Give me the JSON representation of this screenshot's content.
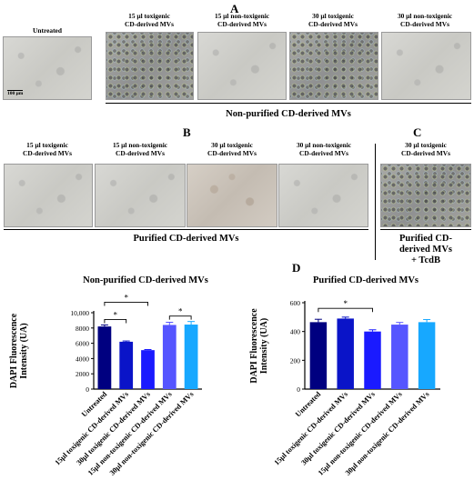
{
  "panel_labels": {
    "a": "A",
    "b": "B",
    "c": "C",
    "d": "D"
  },
  "row_a": {
    "untreated_label": "Untreated",
    "scale_bar": "100 μm",
    "captions": [
      "15 µl toxigenic\nCD-derived MVs",
      "15 µl non-toxigenic\nCD-derived MVs",
      "30 µl toxigenic\nCD-derived MVs",
      "30 µl non-toxigenic\nCD-derived MVs"
    ],
    "section_label": "Non-purified CD-derived MVs"
  },
  "row_b": {
    "captions": [
      "15 µl toxigenic\nCD-derived MVs",
      "15 µl non-toxigenic\nCD-derived MVs",
      "30 µl toxigenic\nCD-derived MVs",
      "30 µl non-toxigenic\nCD-derived MVs"
    ],
    "section_label": "Purified CD-derived MVs"
  },
  "panel_c": {
    "caption": "30 µl toxigenic\nCD-derived MVs",
    "section_label": "Purified CD-\nderived MVs\n+ TcdB"
  },
  "colors": [
    "#000080",
    "#0a14c8",
    "#1a1aff",
    "#5555ff",
    "#17a8ff"
  ],
  "chart_data": [
    {
      "type": "bar",
      "title": "Non-purified CD-derived MVs",
      "ylabel": "DAPI Fluorescence\nIntensity (UA)",
      "categories": [
        "Untreated",
        "15µl toxigenic CD-derived MVs",
        "30µl toxigenic CD-derived MVs",
        "15µl non-toxigenic CD-derived MVs",
        "30µl non-toxigenic CD-derived MVs"
      ],
      "values": [
        8200,
        6200,
        5100,
        8400,
        8450
      ],
      "errors": [
        200,
        100,
        80,
        350,
        400
      ],
      "ylim": [
        0,
        10000
      ],
      "yticks": [
        0,
        2000,
        4000,
        6000,
        8000,
        10000
      ],
      "ytick_labels": [
        "0",
        "2000",
        "4000",
        "6000",
        "8000",
        "10,000"
      ],
      "significance": [
        {
          "from": 0,
          "to": 1,
          "label": "*"
        },
        {
          "from": 0,
          "to": 2,
          "label": "*"
        },
        {
          "from": 3,
          "to": 4,
          "label": "*"
        }
      ]
    },
    {
      "type": "bar",
      "title": "Purified CD-derived MVs",
      "ylabel": "DAPI Fluorescence\nIntensity (UA)",
      "categories": [
        "Untreated",
        "15µl toxigenic CD-derived MVs",
        "30µl toxigenic CD-derived MVs",
        "15µl non-toxigenic CD-derived MVs",
        "30µl non-toxigenic CD-derived MVs"
      ],
      "values": [
        465,
        490,
        400,
        448,
        465
      ],
      "errors": [
        20,
        10,
        12,
        15,
        18
      ],
      "ylim": [
        0,
        600
      ],
      "yticks": [
        0,
        200,
        400,
        600
      ],
      "ytick_labels": [
        "0",
        "200",
        "400",
        "600"
      ],
      "significance": [
        {
          "from": 0,
          "to": 2,
          "label": "*"
        }
      ]
    }
  ]
}
